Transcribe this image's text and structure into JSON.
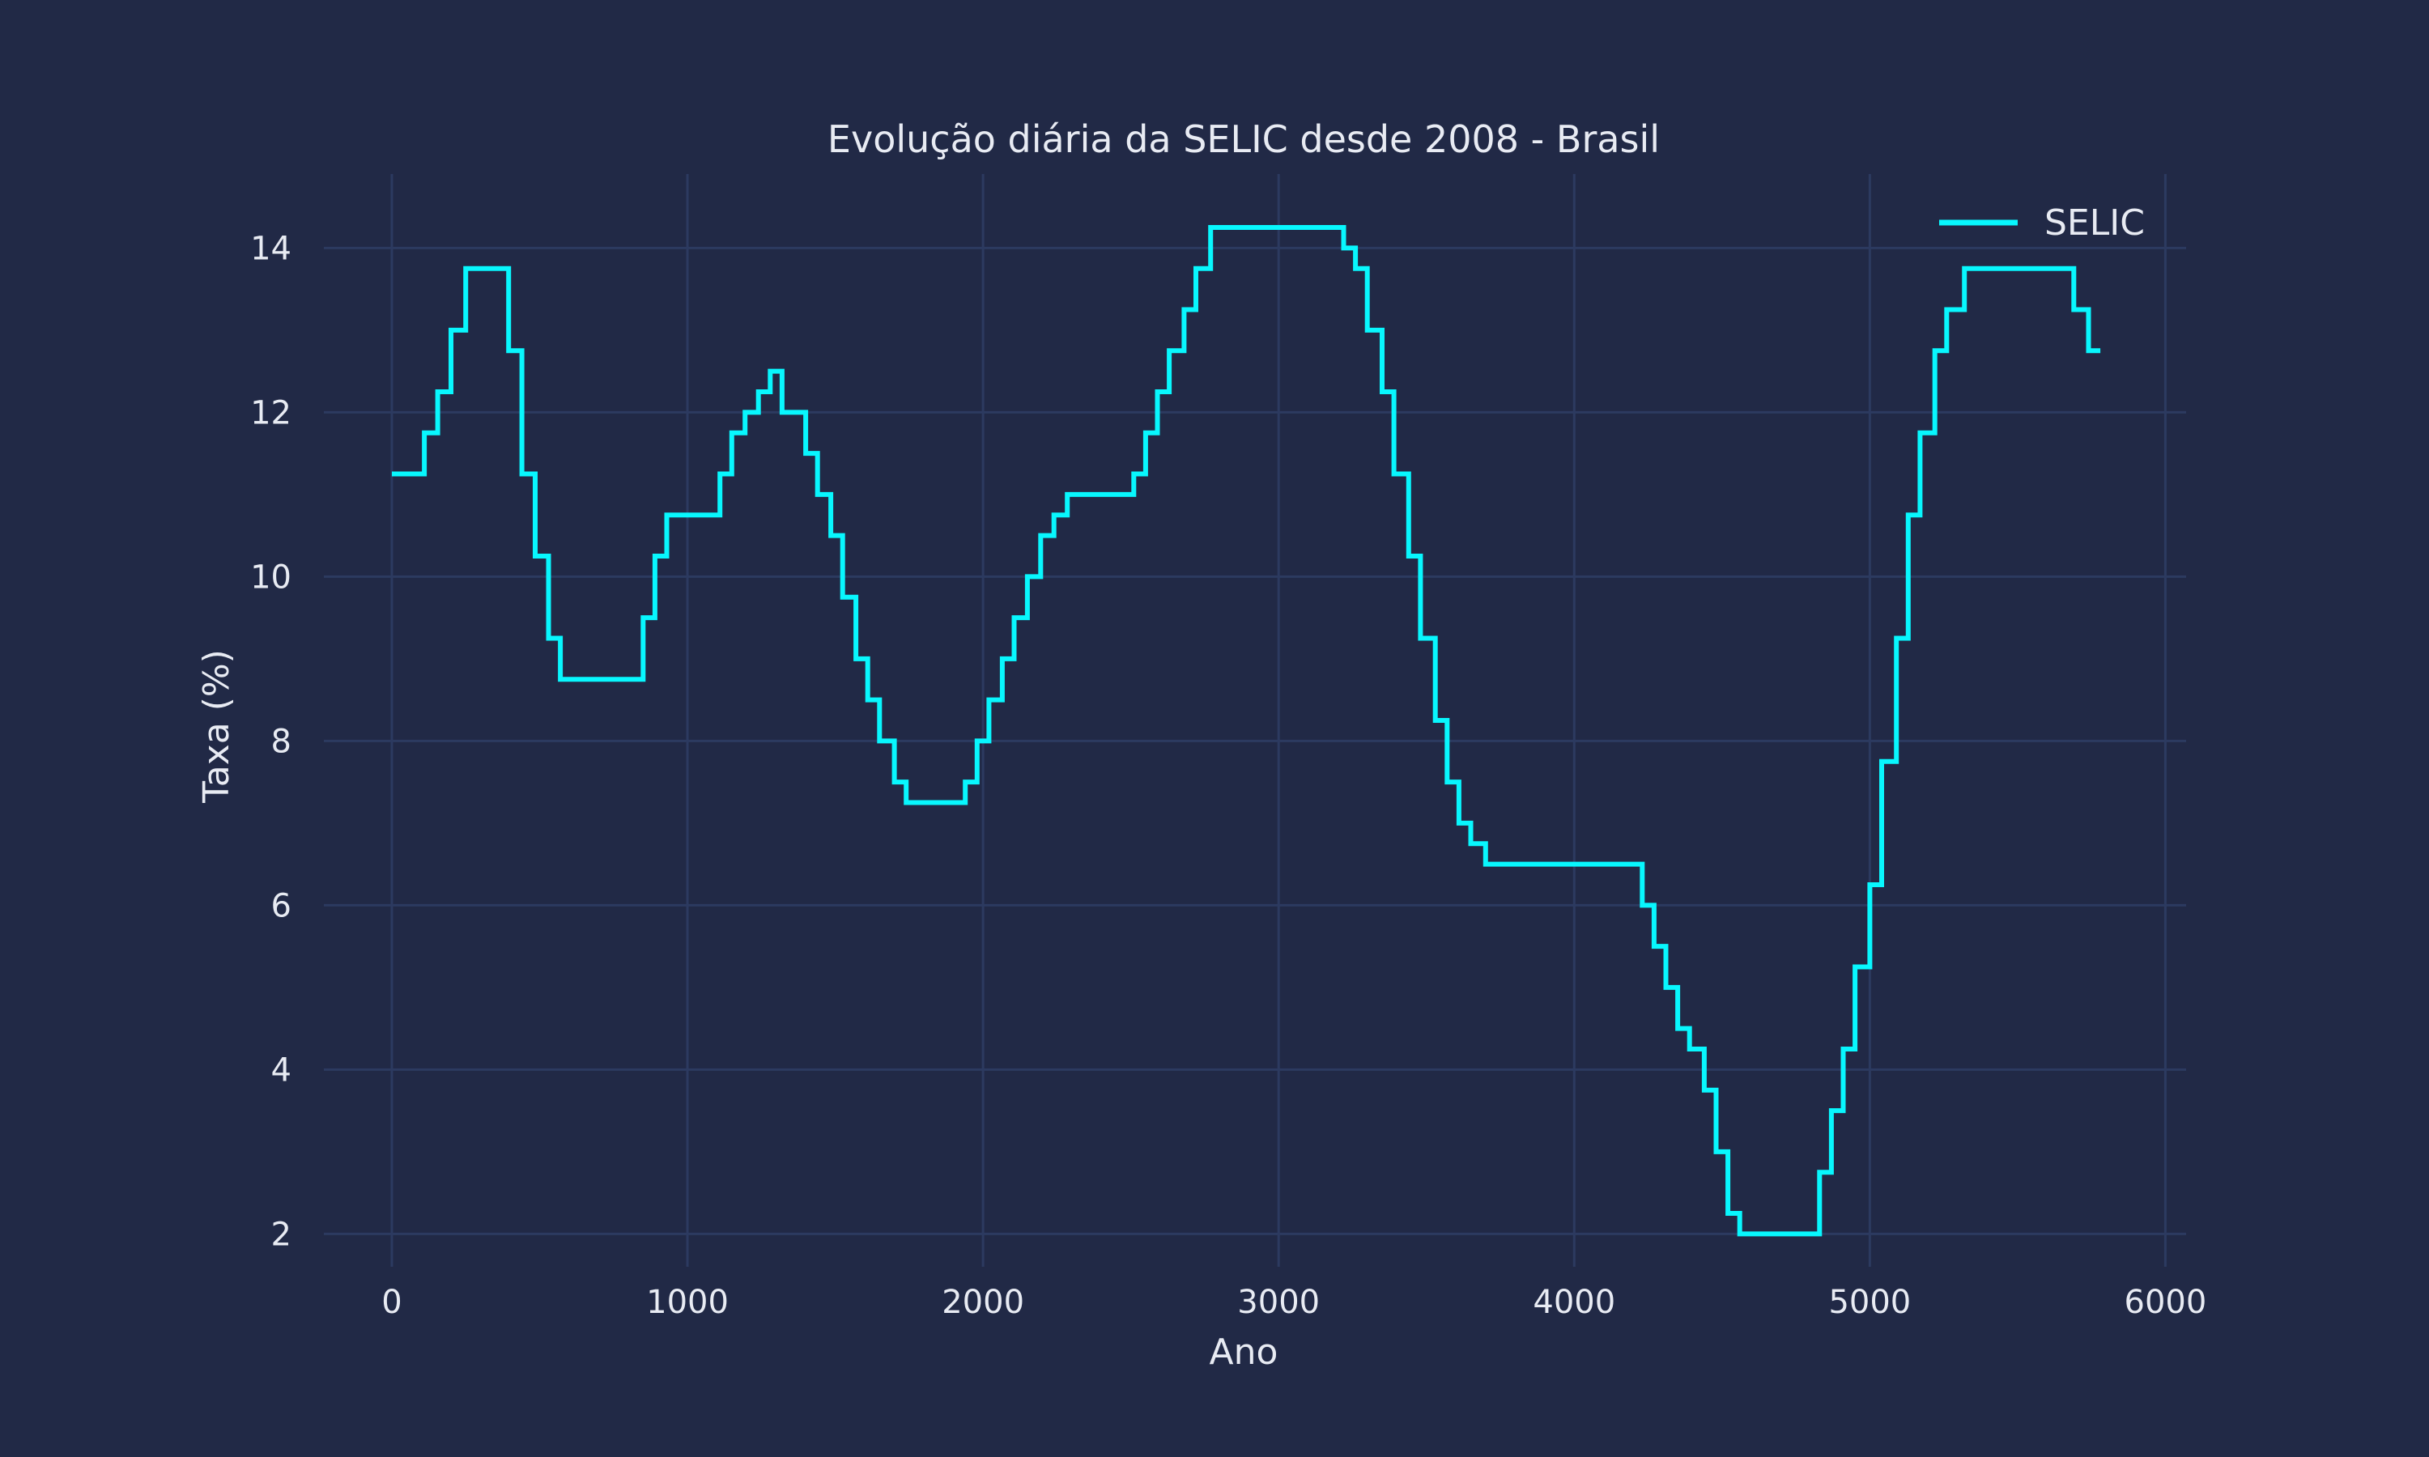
{
  "chart_data": {
    "type": "line",
    "title": "Evolução diária da SELIC desde 2008 - Brasil",
    "xlabel": "Ano",
    "ylabel": "Taxa (%)",
    "xlim": [
      -230,
      6070
    ],
    "ylim": [
      1.6,
      14.9
    ],
    "xticks": [
      0,
      1000,
      2000,
      3000,
      4000,
      5000,
      6000
    ],
    "yticks": [
      2,
      4,
      6,
      8,
      10,
      12,
      14
    ],
    "grid": true,
    "legend_position": "top-right",
    "step": "post",
    "series": [
      {
        "name": "SELIC",
        "color": "#08f7fe",
        "x": [
          0,
          110,
          155,
          200,
          250,
          395,
          440,
          485,
          530,
          570,
          850,
          890,
          930,
          1110,
          1150,
          1195,
          1240,
          1280,
          1320,
          1400,
          1440,
          1485,
          1525,
          1570,
          1610,
          1650,
          1700,
          1740,
          1940,
          1980,
          2020,
          2065,
          2105,
          2150,
          2195,
          2240,
          2285,
          2510,
          2550,
          2590,
          2630,
          2680,
          2720,
          2770,
          3220,
          3260,
          3300,
          3350,
          3390,
          3440,
          3480,
          3530,
          3570,
          3610,
          3650,
          3700,
          3740,
          4230,
          4270,
          4310,
          4350,
          4390,
          4440,
          4480,
          4520,
          4560,
          4610,
          4830,
          4870,
          4910,
          4950,
          5000,
          5040,
          5090,
          5130,
          5170,
          5220,
          5260,
          5320,
          5690,
          5740,
          5780
        ],
        "values": [
          11.25,
          11.75,
          12.25,
          13.0,
          13.75,
          12.75,
          11.25,
          10.25,
          9.25,
          8.75,
          9.5,
          10.25,
          10.75,
          11.25,
          11.75,
          12.0,
          12.25,
          12.5,
          12.0,
          11.5,
          11.0,
          10.5,
          9.75,
          9.0,
          8.5,
          8.0,
          7.5,
          7.25,
          7.5,
          8.0,
          8.5,
          9.0,
          9.5,
          10.0,
          10.5,
          10.75,
          11.0,
          11.25,
          11.75,
          12.25,
          12.75,
          13.25,
          13.75,
          14.25,
          14.0,
          13.75,
          13.0,
          12.25,
          11.25,
          10.25,
          9.25,
          8.25,
          7.5,
          7.0,
          6.75,
          6.5,
          6.5,
          6.0,
          5.5,
          5.0,
          4.5,
          4.25,
          3.75,
          3.0,
          2.25,
          2.0,
          2.0,
          2.75,
          3.5,
          4.25,
          5.25,
          6.25,
          7.75,
          9.25,
          10.75,
          11.75,
          12.75,
          13.25,
          13.75,
          13.25,
          12.75,
          12.75
        ]
      }
    ]
  }
}
